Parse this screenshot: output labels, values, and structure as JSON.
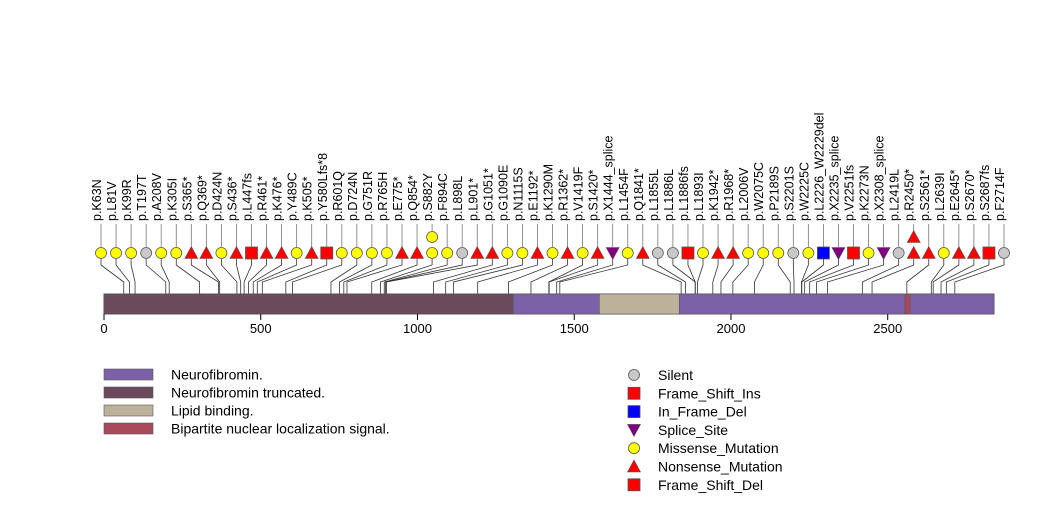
{
  "chart_data": {
    "type": "lollipop",
    "protein_length": 2839,
    "axis": {
      "ticks": [
        0,
        500,
        1000,
        1500,
        2000,
        2500
      ]
    },
    "domains": [
      {
        "name": "Neurofibromin truncated.",
        "start": 1,
        "end": 1305,
        "color": "#6b4a5c"
      },
      {
        "name": "Neurofibromin.",
        "start": 1305,
        "end": 2839,
        "color": "#7b62a8"
      },
      {
        "name": "Lipid binding.",
        "start": 1580,
        "end": 1835,
        "color": "#bdb199"
      },
      {
        "name": "Bipartite nuclear localization signal.",
        "start": 2555,
        "end": 2571,
        "color": "#a84a5c"
      }
    ],
    "legend_domains": [
      {
        "name": "Neurofibromin.",
        "color": "#7b62a8"
      },
      {
        "name": "Neurofibromin truncated.",
        "color": "#6b4a5c"
      },
      {
        "name": "Lipid binding.",
        "color": "#bdb199"
      },
      {
        "name": "Bipartite nuclear localization signal.",
        "color": "#a84a5c"
      }
    ],
    "legend_mutations": [
      {
        "type": "Silent",
        "shape": "circle",
        "color": "#c8c8c8"
      },
      {
        "type": "Frame_Shift_Ins",
        "shape": "square",
        "color": "#ff0000"
      },
      {
        "type": "In_Frame_Del",
        "shape": "square",
        "color": "#0000ff"
      },
      {
        "type": "Splice_Site",
        "shape": "down-triangle",
        "color": "#800080"
      },
      {
        "type": "Missense_Mutation",
        "shape": "circle",
        "color": "#ffff00"
      },
      {
        "type": "Nonsense_Mutation",
        "shape": "up-triangle",
        "color": "#ff0000"
      },
      {
        "type": "Frame_Shift_Del",
        "shape": "square",
        "color": "#ff0000"
      }
    ],
    "mutations": [
      {
        "label": "p.K63N",
        "pos": 63,
        "type": "Missense_Mutation",
        "count": 1
      },
      {
        "label": "p.L81V",
        "pos": 81,
        "type": "Missense_Mutation",
        "count": 1
      },
      {
        "label": "p.K99R",
        "pos": 99,
        "type": "Missense_Mutation",
        "count": 1
      },
      {
        "label": "p.T197T",
        "pos": 197,
        "type": "Silent",
        "count": 1
      },
      {
        "label": "p.A208V",
        "pos": 208,
        "type": "Missense_Mutation",
        "count": 1
      },
      {
        "label": "p.K305I",
        "pos": 305,
        "type": "Missense_Mutation",
        "count": 1
      },
      {
        "label": "p.S365*",
        "pos": 365,
        "type": "Nonsense_Mutation",
        "count": 1
      },
      {
        "label": "p.Q369*",
        "pos": 369,
        "type": "Nonsense_Mutation",
        "count": 1
      },
      {
        "label": "p.D424N",
        "pos": 424,
        "type": "Missense_Mutation",
        "count": 1
      },
      {
        "label": "p.S436*",
        "pos": 436,
        "type": "Nonsense_Mutation",
        "count": 1
      },
      {
        "label": "p.L447fs",
        "pos": 447,
        "type": "Frame_Shift_Del",
        "count": 1
      },
      {
        "label": "p.R461*",
        "pos": 461,
        "type": "Nonsense_Mutation",
        "count": 1
      },
      {
        "label": "p.K476*",
        "pos": 476,
        "type": "Nonsense_Mutation",
        "count": 1
      },
      {
        "label": "p.Y489C",
        "pos": 489,
        "type": "Missense_Mutation",
        "count": 1
      },
      {
        "label": "p.K505*",
        "pos": 505,
        "type": "Nonsense_Mutation",
        "count": 1
      },
      {
        "label": "p.Y580Lfs*8",
        "pos": 580,
        "type": "Frame_Shift_Del",
        "count": 1
      },
      {
        "label": "p.R601Q",
        "pos": 601,
        "type": "Missense_Mutation",
        "count": 1
      },
      {
        "label": "p.D724N",
        "pos": 724,
        "type": "Missense_Mutation",
        "count": 1
      },
      {
        "label": "p.G751R",
        "pos": 751,
        "type": "Missense_Mutation",
        "count": 1
      },
      {
        "label": "p.R765H",
        "pos": 765,
        "type": "Missense_Mutation",
        "count": 1
      },
      {
        "label": "p.E775*",
        "pos": 775,
        "type": "Nonsense_Mutation",
        "count": 1
      },
      {
        "label": "p.Q854*",
        "pos": 854,
        "type": "Nonsense_Mutation",
        "count": 1
      },
      {
        "label": "p.S882Y",
        "pos": 882,
        "type": "Missense_Mutation",
        "count": 2
      },
      {
        "label": "p.F894C",
        "pos": 894,
        "type": "Missense_Mutation",
        "count": 1
      },
      {
        "label": "p.L898L",
        "pos": 898,
        "type": "Silent",
        "count": 1
      },
      {
        "label": "p.L901*",
        "pos": 901,
        "type": "Nonsense_Mutation",
        "count": 1
      },
      {
        "label": "p.G1051*",
        "pos": 1051,
        "type": "Nonsense_Mutation",
        "count": 1
      },
      {
        "label": "p.G1090E",
        "pos": 1090,
        "type": "Missense_Mutation",
        "count": 1
      },
      {
        "label": "p.N1115S",
        "pos": 1115,
        "type": "Missense_Mutation",
        "count": 1
      },
      {
        "label": "p.E1192*",
        "pos": 1192,
        "type": "Nonsense_Mutation",
        "count": 1
      },
      {
        "label": "p.K1290M",
        "pos": 1290,
        "type": "Missense_Mutation",
        "count": 1
      },
      {
        "label": "p.R1362*",
        "pos": 1362,
        "type": "Nonsense_Mutation",
        "count": 1
      },
      {
        "label": "p.V1419F",
        "pos": 1419,
        "type": "Missense_Mutation",
        "count": 1
      },
      {
        "label": "p.S1420*",
        "pos": 1420,
        "type": "Nonsense_Mutation",
        "count": 1
      },
      {
        "label": "p.X1444_splice",
        "pos": 1444,
        "type": "Splice_Site",
        "count": 1
      },
      {
        "label": "p.L1454F",
        "pos": 1454,
        "type": "Missense_Mutation",
        "count": 1
      },
      {
        "label": "p.Q1841*",
        "pos": 1841,
        "type": "Nonsense_Mutation",
        "count": 1
      },
      {
        "label": "p.L1855L",
        "pos": 1855,
        "type": "Silent",
        "count": 1
      },
      {
        "label": "p.L1886L",
        "pos": 1886,
        "type": "Silent",
        "count": 1
      },
      {
        "label": "p.L1886fs",
        "pos": 1886,
        "type": "Frame_Shift_Del",
        "count": 1
      },
      {
        "label": "p.L1893I",
        "pos": 1893,
        "type": "Missense_Mutation",
        "count": 1
      },
      {
        "label": "p.K1942*",
        "pos": 1942,
        "type": "Nonsense_Mutation",
        "count": 1
      },
      {
        "label": "p.R1968*",
        "pos": 1968,
        "type": "Nonsense_Mutation",
        "count": 1
      },
      {
        "label": "p.L2006V",
        "pos": 2006,
        "type": "Missense_Mutation",
        "count": 1
      },
      {
        "label": "p.W2075C",
        "pos": 2075,
        "type": "Missense_Mutation",
        "count": 1
      },
      {
        "label": "p.P2189S",
        "pos": 2189,
        "type": "Missense_Mutation",
        "count": 1
      },
      {
        "label": "p.S2201S",
        "pos": 2201,
        "type": "Silent",
        "count": 1
      },
      {
        "label": "p.W2225C",
        "pos": 2225,
        "type": "Missense_Mutation",
        "count": 1
      },
      {
        "label": "p.L2226_W2229del",
        "pos": 2226,
        "type": "In_Frame_Del",
        "count": 1
      },
      {
        "label": "p.X2235_splice",
        "pos": 2235,
        "type": "Splice_Site",
        "count": 1
      },
      {
        "label": "p.V2251fs",
        "pos": 2251,
        "type": "Frame_Shift_Del",
        "count": 1
      },
      {
        "label": "p.K2273N",
        "pos": 2273,
        "type": "Missense_Mutation",
        "count": 1
      },
      {
        "label": "p.X2308_splice",
        "pos": 2308,
        "type": "Splice_Site",
        "count": 1
      },
      {
        "label": "p.L2419L",
        "pos": 2419,
        "type": "Silent",
        "count": 1
      },
      {
        "label": "p.R2450*",
        "pos": 2450,
        "type": "Nonsense_Mutation",
        "count": 2
      },
      {
        "label": "p.S2561*",
        "pos": 2561,
        "type": "Nonsense_Mutation",
        "count": 1
      },
      {
        "label": "p.L2639I",
        "pos": 2639,
        "type": "Missense_Mutation",
        "count": 1
      },
      {
        "label": "p.E2645*",
        "pos": 2645,
        "type": "Nonsense_Mutation",
        "count": 1
      },
      {
        "label": "p.S2670*",
        "pos": 2670,
        "type": "Nonsense_Mutation",
        "count": 1
      },
      {
        "label": "p.S2687fs",
        "pos": 2687,
        "type": "Frame_Shift_Del",
        "count": 1
      },
      {
        "label": "p.F2714F",
        "pos": 2714,
        "type": "Silent",
        "count": 1
      }
    ]
  }
}
